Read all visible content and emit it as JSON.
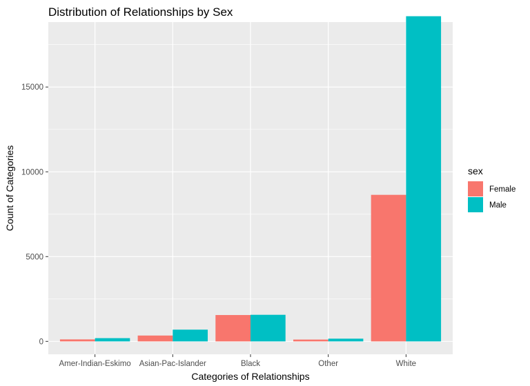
{
  "chart_data": {
    "type": "bar",
    "title": "Distribution of Relationships by Sex",
    "xlabel": "Categories of Relationships",
    "ylabel": "Count of Categories",
    "categories": [
      "Amer-Indian-Eskimo",
      "Asian-Pac-Islander",
      "Black",
      "Other",
      "White"
    ],
    "series": [
      {
        "name": "Female",
        "values": [
          119,
          346,
          1555,
          109,
          8642
        ],
        "color": "#F8766D"
      },
      {
        "name": "Male",
        "values": [
          192,
          693,
          1569,
          162,
          19174
        ],
        "color": "#00BFC4"
      }
    ],
    "ylim": [
      -760,
      18830
    ],
    "yticks": [
      0,
      5000,
      10000,
      15000
    ],
    "ytick_labels": [
      "0",
      "5000",
      "10000",
      "15000"
    ],
    "legend": {
      "title": "sex",
      "placement": "right"
    },
    "grid": true,
    "panel_background": "#EBEBEB",
    "grid_color": "#FFFFFF"
  }
}
